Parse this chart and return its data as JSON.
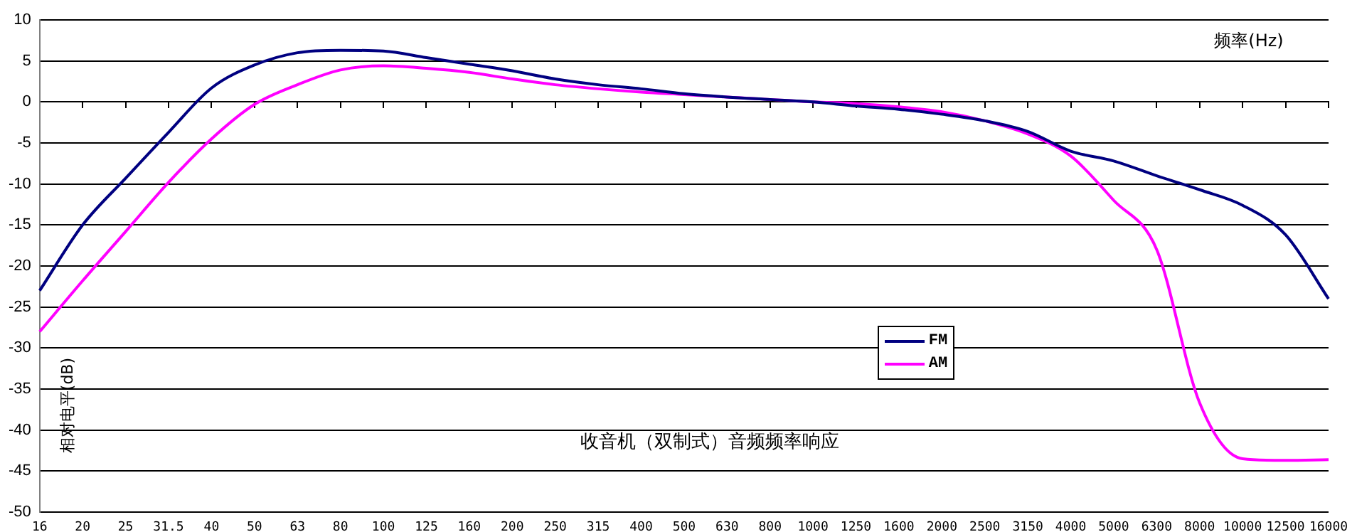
{
  "chart_data": {
    "type": "line",
    "title": "收音机（双制式）音频频率响应",
    "xlabel": "频率(Hz)",
    "ylabel": "相对电平(dB)",
    "categories": [
      "16",
      "20",
      "25",
      "31.5",
      "40",
      "50",
      "63",
      "80",
      "100",
      "125",
      "160",
      "200",
      "250",
      "315",
      "400",
      "500",
      "630",
      "800",
      "1000",
      "1250",
      "1600",
      "2000",
      "2500",
      "3150",
      "4000",
      "5000",
      "6300",
      "8000",
      "10000",
      "12500",
      "16000"
    ],
    "series": [
      {
        "name": "FM",
        "color": "#000080",
        "values": [
          -23,
          -15,
          -9.3,
          -3.7,
          1.7,
          4.5,
          6,
          6.3,
          6.2,
          5.4,
          4.6,
          3.8,
          2.8,
          2.1,
          1.6,
          1,
          0.6,
          0.3,
          0,
          -0.5,
          -0.9,
          -1.5,
          -2.3,
          -3.6,
          -6,
          -7.2,
          -9,
          -10.7,
          -12.6,
          -16.2,
          -24
        ]
      },
      {
        "name": "AM",
        "color": "#ff00ff",
        "values": [
          -28,
          -21.8,
          -15.8,
          -9.8,
          -4.5,
          -0.3,
          2.1,
          3.9,
          4.4,
          4.1,
          3.6,
          2.8,
          2.1,
          1.6,
          1.2,
          0.9,
          0.6,
          0.3,
          0,
          -0.2,
          -0.6,
          -1.2,
          -2.3,
          -3.9,
          -6.6,
          -12,
          -18,
          -36.7,
          -43.5,
          -43.7,
          -43.6
        ]
      }
    ],
    "ylim": [
      -50,
      10
    ],
    "yticks": [
      -50,
      -45,
      -40,
      -35,
      -30,
      -25,
      -20,
      -15,
      -10,
      -5,
      0,
      5,
      10
    ],
    "grid": "y",
    "legend": "center",
    "marker": "none",
    "line_style": "solid"
  }
}
